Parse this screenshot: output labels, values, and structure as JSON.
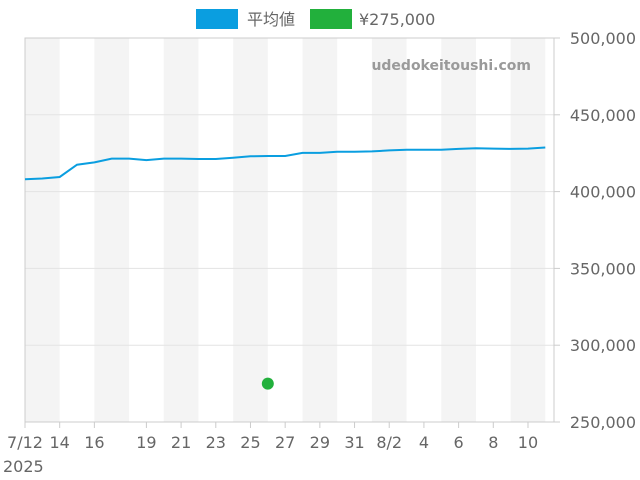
{
  "legend": {
    "average_label": "平均値",
    "price_label": "¥275,000",
    "average_color": "#0a9ee0",
    "price_color": "#22b03c"
  },
  "watermark": "udedokeitoushi.com",
  "chart_data": {
    "type": "line",
    "title": "",
    "xlabel": "",
    "ylabel": "",
    "ylim": [
      250000,
      500000
    ],
    "y_ticks": [
      "500,000",
      "450,000",
      "400,000",
      "350,000",
      "300,000",
      "250,000"
    ],
    "y_tick_values": [
      500000,
      450000,
      400000,
      350000,
      300000,
      250000
    ],
    "x_ticks": [
      {
        "label": "7/12",
        "day": 0
      },
      {
        "label": "14",
        "day": 2
      },
      {
        "label": "16",
        "day": 4
      },
      {
        "label": "19",
        "day": 7
      },
      {
        "label": "21",
        "day": 9
      },
      {
        "label": "23",
        "day": 11
      },
      {
        "label": "25",
        "day": 13
      },
      {
        "label": "27",
        "day": 15
      },
      {
        "label": "29",
        "day": 17
      },
      {
        "label": "31",
        "day": 19
      },
      {
        "label": "8/2",
        "day": 21
      },
      {
        "label": "4",
        "day": 23
      },
      {
        "label": "6",
        "day": 25
      },
      {
        "label": "8",
        "day": 27
      },
      {
        "label": "10",
        "day": 29
      }
    ],
    "year_label": "2025",
    "series": [
      {
        "name": "平均値",
        "color": "#0a9ee0",
        "points": [
          [
            0,
            408000
          ],
          [
            1,
            408500
          ],
          [
            2,
            409500
          ],
          [
            3,
            417500
          ],
          [
            4,
            419000
          ],
          [
            5,
            421500
          ],
          [
            6,
            421500
          ],
          [
            7,
            420500
          ],
          [
            8,
            421500
          ],
          [
            9,
            421500
          ],
          [
            10,
            421200
          ],
          [
            11,
            421200
          ],
          [
            12,
            422000
          ],
          [
            13,
            423000
          ],
          [
            14,
            423200
          ],
          [
            15,
            423200
          ],
          [
            16,
            425200
          ],
          [
            17,
            425200
          ],
          [
            18,
            426000
          ],
          [
            19,
            426000
          ],
          [
            20,
            426200
          ],
          [
            21,
            426800
          ],
          [
            22,
            427300
          ],
          [
            23,
            427300
          ],
          [
            24,
            427300
          ],
          [
            25,
            427800
          ],
          [
            26,
            428200
          ],
          [
            27,
            428000
          ],
          [
            28,
            427800
          ],
          [
            29,
            428000
          ],
          [
            30,
            428700
          ]
        ]
      },
      {
        "name": "¥275,000",
        "color": "#22b03c",
        "type": "scatter",
        "points": [
          [
            14,
            275000
          ]
        ]
      }
    ],
    "shaded_bands_days": [
      [
        0,
        2
      ],
      [
        4,
        6
      ],
      [
        8,
        10
      ],
      [
        12,
        14
      ],
      [
        16,
        18
      ],
      [
        20,
        22
      ],
      [
        24,
        26
      ],
      [
        28,
        30
      ]
    ],
    "grid": true,
    "legend_position": "top-center"
  }
}
